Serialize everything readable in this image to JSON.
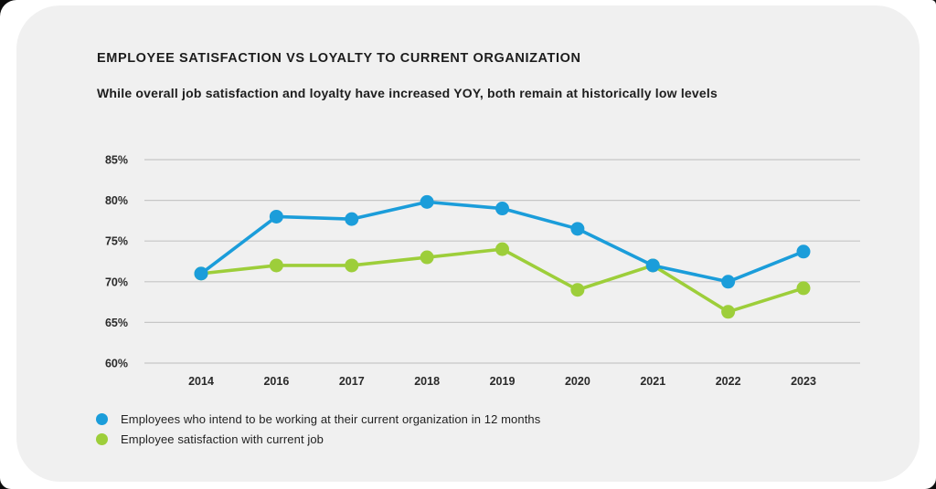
{
  "card": {
    "title": "EMPLOYEE SATISFACTION VS LOYALTY TO CURRENT ORGANIZATION",
    "subtitle": "While overall job satisfaction and loyalty have increased YOY, both remain at historically low levels"
  },
  "colors": {
    "card_background": "#f0f0f0",
    "gridline": "#c6c6c6",
    "text": "#1d1d1d",
    "series_blue": "#1b9dda",
    "series_green": "#9dce3a"
  },
  "chart_data": {
    "type": "line",
    "categories": [
      "2014",
      "2016",
      "2017",
      "2018",
      "2019",
      "2020",
      "2021",
      "2022",
      "2023"
    ],
    "series": [
      {
        "name": "Employees who intend to be working at their current organization in 12 months",
        "color": "#1b9dda",
        "values": [
          71,
          78,
          77.7,
          79.8,
          79,
          76.5,
          72,
          70,
          73.7
        ]
      },
      {
        "name": "Employee satisfaction with current job",
        "color": "#9dce3a",
        "values": [
          71,
          72,
          72,
          73,
          74,
          69,
          72,
          66.3,
          69.2
        ]
      }
    ],
    "title": "EMPLOYEE SATISFACTION VS LOYALTY TO CURRENT ORGANIZATION",
    "xlabel": "",
    "ylabel": "",
    "ylim": [
      60,
      85
    ],
    "yticks": [
      85,
      80,
      75,
      70,
      65,
      60
    ],
    "ytick_suffix": "%",
    "grid": true,
    "legend_position": "bottom-left",
    "marker": "circle",
    "draw_order_note": "green drawn first; blue dots overlap green vertices at 2014 and 2021"
  }
}
